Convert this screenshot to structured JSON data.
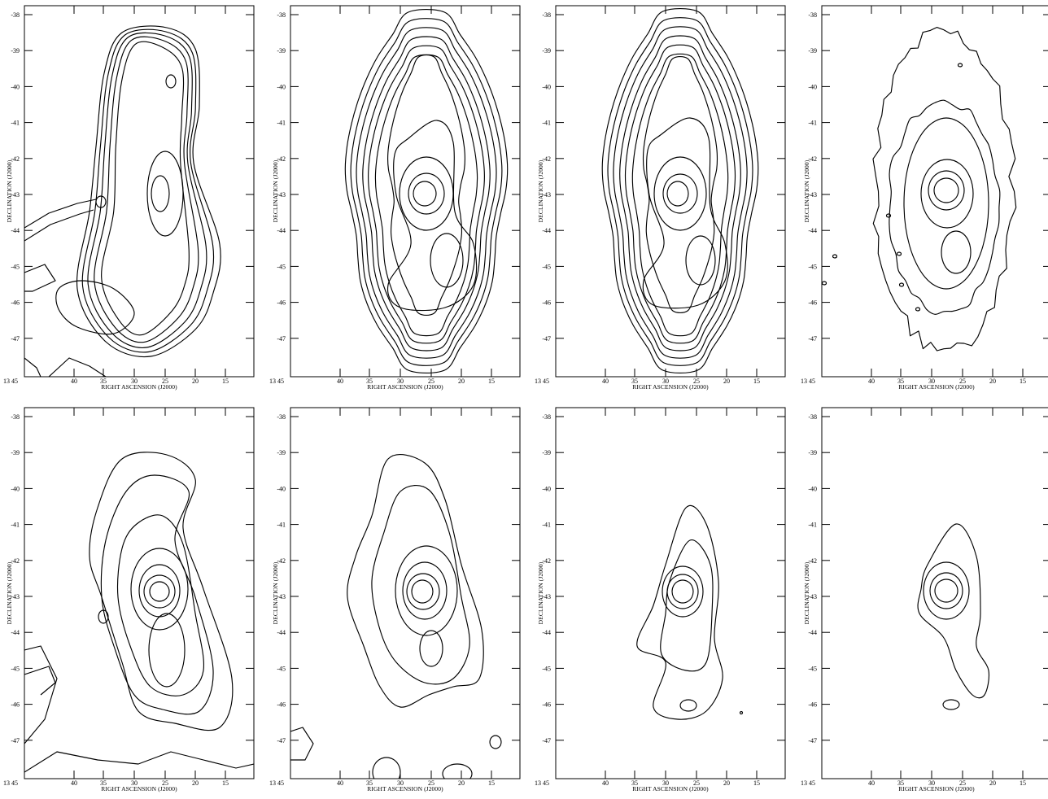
{
  "figure": {
    "panel_count": 8,
    "xlabel": "RIGHT ASCENSION (J2000)",
    "ylabel": "DECLINATION (J2000)",
    "x_ticks": [
      "13 45",
      "40",
      "35",
      "30",
      "25",
      "20",
      "15"
    ],
    "y_ticks": [
      "-38",
      "-39",
      "-40",
      "-41",
      "-42",
      "-43",
      "-44",
      "-45",
      "-46",
      "-47"
    ],
    "line_color": "#000000",
    "background_color": "#ffffff"
  }
}
